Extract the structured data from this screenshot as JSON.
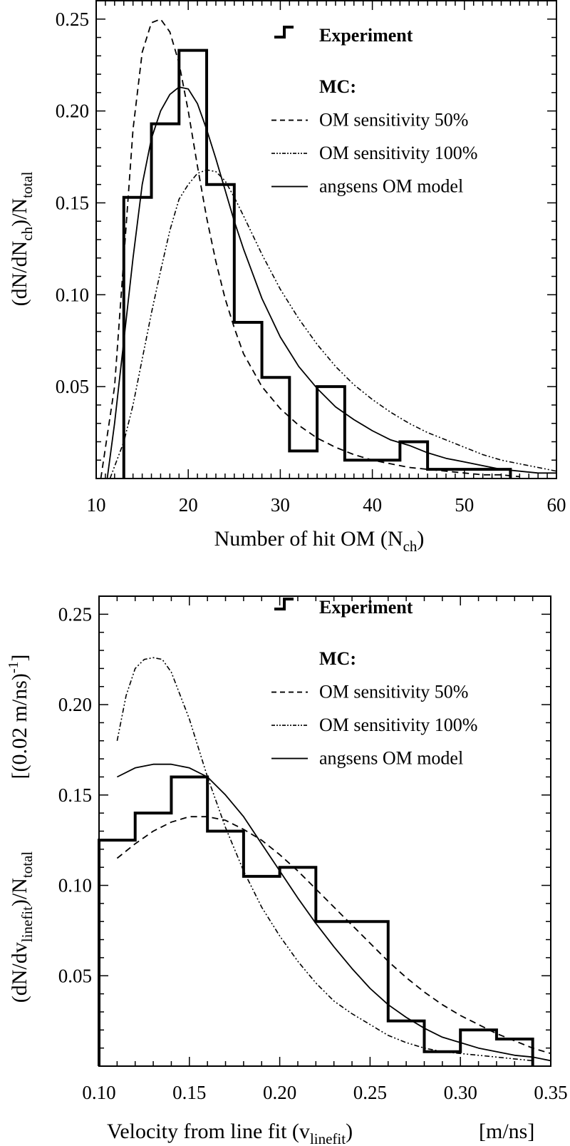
{
  "chart_data": [
    {
      "type": "line",
      "id": "top",
      "xlabel": "Number of hit OM (N",
      "xlabel_sub": "ch",
      "xlabel_end": ")",
      "ylabel_parts": [
        "(dN/dN",
        "ch",
        ")/N",
        "total"
      ],
      "xlim": [
        10,
        60
      ],
      "ylim": [
        0,
        0.26
      ],
      "xticks": [
        10,
        20,
        30,
        40,
        50,
        60
      ],
      "xtick_labels": [
        "10",
        "20",
        "30",
        "40",
        "50",
        "60"
      ],
      "yticks": [
        0.05,
        0.1,
        0.15,
        0.2,
        0.25
      ],
      "ytick_labels": [
        "0.05",
        "0.10",
        "0.15",
        "0.20",
        "0.25"
      ],
      "x_minor_step": 1,
      "y_minor_step": 0.01,
      "legend": {
        "placement": "top-right",
        "experiment": "Experiment",
        "mc_header": "MC:",
        "entries": [
          "OM sensitivity 50%",
          "OM sensitivity 100%",
          "angsens OM model"
        ]
      },
      "histogram": {
        "name": "Experiment",
        "edges": [
          13,
          16,
          19,
          22,
          25,
          28,
          31,
          34,
          37,
          43,
          46,
          55
        ],
        "values": [
          0.153,
          0.193,
          0.233,
          0.16,
          0.085,
          0.055,
          0.015,
          0.05,
          0.01,
          0.02,
          0.005
        ]
      },
      "series": [
        {
          "name": "OM sensitivity 50%",
          "style": "dashed",
          "x": [
            10.5,
            12,
            13,
            14,
            15,
            16,
            17,
            18,
            19,
            20,
            21,
            22,
            23,
            24,
            25,
            26,
            28,
            30,
            32,
            34,
            36,
            38,
            40,
            42,
            44,
            46,
            48,
            50,
            52,
            54,
            56
          ],
          "y": [
            0.0,
            0.05,
            0.12,
            0.19,
            0.232,
            0.248,
            0.25,
            0.243,
            0.226,
            0.2,
            0.17,
            0.142,
            0.118,
            0.098,
            0.082,
            0.068,
            0.05,
            0.038,
            0.029,
            0.022,
            0.017,
            0.013,
            0.01,
            0.008,
            0.006,
            0.005,
            0.004,
            0.003,
            0.002,
            0.002,
            0.001
          ]
        },
        {
          "name": "OM sensitivity 100%",
          "style": "dashdot",
          "x": [
            11.5,
            13,
            14,
            15,
            16,
            17,
            18,
            19,
            20,
            21,
            22,
            23,
            24,
            25,
            26,
            28,
            30,
            32,
            34,
            36,
            38,
            40,
            42,
            44,
            46,
            48,
            50,
            52,
            54,
            56,
            58,
            60
          ],
          "y": [
            0.0,
            0.02,
            0.04,
            0.065,
            0.09,
            0.113,
            0.135,
            0.152,
            0.16,
            0.166,
            0.168,
            0.167,
            0.162,
            0.153,
            0.143,
            0.122,
            0.103,
            0.087,
            0.073,
            0.061,
            0.051,
            0.043,
            0.036,
            0.03,
            0.025,
            0.021,
            0.017,
            0.013,
            0.01,
            0.008,
            0.006,
            0.004
          ]
        },
        {
          "name": "angsens OM model",
          "style": "solid",
          "x": [
            11.2,
            12,
            13,
            14,
            15,
            16,
            17,
            18,
            19,
            20,
            21,
            22,
            23,
            24,
            25,
            26,
            28,
            30,
            32,
            34,
            36,
            38,
            40,
            42,
            44,
            46,
            48,
            50,
            52,
            54,
            56,
            58,
            60
          ],
          "y": [
            0.0,
            0.03,
            0.075,
            0.12,
            0.16,
            0.185,
            0.2,
            0.209,
            0.213,
            0.212,
            0.204,
            0.19,
            0.174,
            0.157,
            0.14,
            0.125,
            0.098,
            0.077,
            0.061,
            0.049,
            0.039,
            0.032,
            0.026,
            0.021,
            0.018,
            0.014,
            0.011,
            0.009,
            0.007,
            0.005,
            0.004,
            0.003,
            0.003
          ]
        }
      ]
    },
    {
      "type": "line",
      "id": "bottom",
      "xlabel": "Velocity from line fit  (v",
      "xlabel_sub": "linefit",
      "xlabel_end": ")",
      "xlabel_unit": "[m/ns]",
      "ylabel_parts": [
        "(dN/dv",
        "linefit",
        ")/N",
        "total"
      ],
      "ylabel_unit": "[(0.02 m/ns)",
      "ylabel_unit_sup": "-1",
      "ylabel_unit_end": "]",
      "xlim": [
        0.1,
        0.35
      ],
      "ylim": [
        0,
        0.26
      ],
      "xticks": [
        0.1,
        0.15,
        0.2,
        0.25,
        0.3,
        0.35
      ],
      "xtick_labels": [
        "0.10",
        "0.15",
        "0.20",
        "0.25",
        "0.30",
        "0.35"
      ],
      "yticks": [
        0.05,
        0.1,
        0.15,
        0.2,
        0.25
      ],
      "ytick_labels": [
        "0.05",
        "0.10",
        "0.15",
        "0.20",
        "0.25"
      ],
      "x_minor_step": 0.01,
      "y_minor_step": 0.01,
      "legend": {
        "placement": "top-right",
        "experiment": "Experiment",
        "mc_header": "MC:",
        "entries": [
          "OM sensitivity 50%",
          "OM sensitivity 100%",
          "angsens OM model"
        ]
      },
      "histogram": {
        "name": "Experiment",
        "edges": [
          0.1,
          0.12,
          0.14,
          0.16,
          0.18,
          0.2,
          0.22,
          0.26,
          0.28,
          0.3,
          0.32,
          0.34
        ],
        "values": [
          0.125,
          0.14,
          0.16,
          0.13,
          0.105,
          0.11,
          0.08,
          0.025,
          0.008,
          0.02,
          0.015
        ]
      },
      "series": [
        {
          "name": "OM sensitivity 50%",
          "style": "dashed",
          "x": [
            0.11,
            0.12,
            0.13,
            0.14,
            0.15,
            0.16,
            0.17,
            0.18,
            0.19,
            0.2,
            0.21,
            0.22,
            0.23,
            0.24,
            0.25,
            0.26,
            0.27,
            0.28,
            0.29,
            0.3,
            0.31,
            0.32,
            0.33,
            0.34,
            0.35
          ],
          "y": [
            0.115,
            0.123,
            0.13,
            0.135,
            0.138,
            0.138,
            0.136,
            0.131,
            0.125,
            0.117,
            0.108,
            0.098,
            0.088,
            0.078,
            0.068,
            0.058,
            0.049,
            0.041,
            0.034,
            0.028,
            0.023,
            0.018,
            0.014,
            0.01,
            0.007
          ]
        },
        {
          "name": "OM sensitivity 100%",
          "style": "dashdot",
          "x": [
            0.11,
            0.115,
            0.12,
            0.125,
            0.13,
            0.135,
            0.14,
            0.15,
            0.16,
            0.17,
            0.18,
            0.19,
            0.2,
            0.21,
            0.22,
            0.23,
            0.24,
            0.25,
            0.26,
            0.27,
            0.28,
            0.29,
            0.3,
            0.31,
            0.32,
            0.33,
            0.34
          ],
          "y": [
            0.18,
            0.205,
            0.22,
            0.225,
            0.226,
            0.225,
            0.218,
            0.192,
            0.16,
            0.132,
            0.108,
            0.088,
            0.072,
            0.058,
            0.046,
            0.036,
            0.029,
            0.023,
            0.017,
            0.013,
            0.01,
            0.008,
            0.007,
            0.006,
            0.005,
            0.004,
            0.003
          ]
        },
        {
          "name": "angsens OM model",
          "style": "solid",
          "x": [
            0.11,
            0.12,
            0.13,
            0.14,
            0.15,
            0.16,
            0.17,
            0.18,
            0.19,
            0.2,
            0.21,
            0.22,
            0.23,
            0.24,
            0.25,
            0.26,
            0.27,
            0.28,
            0.29,
            0.3,
            0.31,
            0.32,
            0.33,
            0.34,
            0.35
          ],
          "y": [
            0.16,
            0.165,
            0.167,
            0.167,
            0.165,
            0.16,
            0.15,
            0.138,
            0.123,
            0.108,
            0.093,
            0.079,
            0.066,
            0.054,
            0.043,
            0.034,
            0.027,
            0.021,
            0.016,
            0.013,
            0.01,
            0.008,
            0.006,
            0.005,
            0.003
          ]
        }
      ]
    }
  ]
}
